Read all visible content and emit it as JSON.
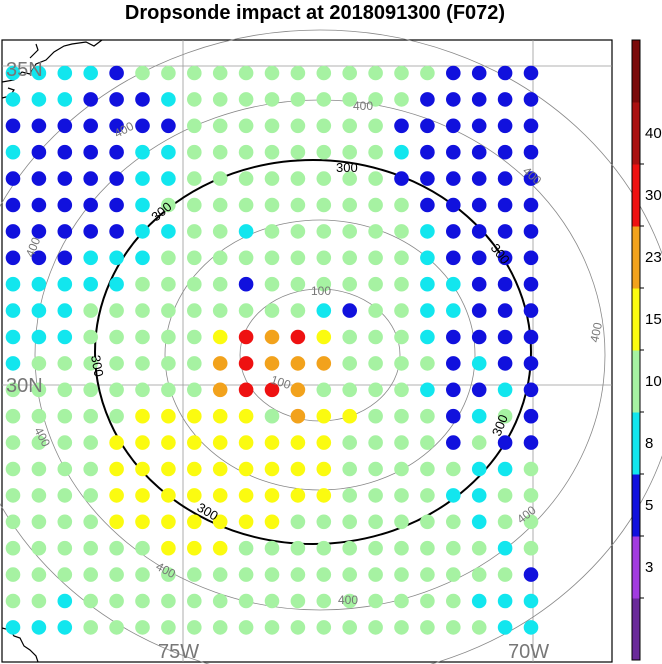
{
  "title": "Dropsonde impact at 2018091300 (F072)",
  "chart_data": {
    "type": "scatter",
    "title": "Dropsonde impact at 2018091300 (F072)",
    "map": {
      "lat_labels": [
        "35N",
        "30N"
      ],
      "lon_labels": [
        "75W",
        "70W"
      ],
      "range_rings": [
        {
          "label": "100",
          "values_shown": [
            "100",
            "100"
          ]
        },
        {
          "label": "300",
          "values_shown": [
            "300",
            "300",
            "300",
            "300",
            "300",
            "300"
          ]
        },
        {
          "label": "400",
          "values_shown": [
            "400",
            "400",
            "400",
            "400",
            "400",
            "400",
            "400"
          ]
        }
      ]
    },
    "colorbar": {
      "ticks": [
        "3",
        "5",
        "8",
        "10",
        "15",
        "23",
        "30",
        "40"
      ],
      "colors": [
        "#6a2a9a",
        "#a23be0",
        "#1111dd",
        "#12e6ee",
        "#a6f2a2",
        "#fbfb10",
        "#f2a21c",
        "#ee1111",
        "#aa1111",
        "#7a0a0a"
      ]
    },
    "grid": {
      "rows": 22,
      "cols": 21,
      "note_legend": [
        "deep blue",
        "cyan",
        "light green",
        "yellow",
        "orange",
        "red"
      ],
      "palette": {
        "B": "#1111dd",
        "C": "#12e6ee",
        "G": "#a6f2a2",
        "Y": "#fbfb10",
        "O": "#f2a21c",
        "R": "#ee1111"
      },
      "values": [
        "CCCCBGGGGGGGGGGGGBBBB",
        "CCCBBBCGGGGGGGGGBBBBB",
        "BBBBBBBGGGGGGGGBBBBBB",
        "CBBBBCCGGGGGGGGCBBBBB",
        "BBBBBCCGGGGGGGGBBBBBB",
        "BBBBBCGGGGGGGGGGBBBBB",
        "BBBBBCCGGCGGGGGGCBBBB",
        "BBBCCCGGGGGGGGGGCBBBB",
        "CCCCCGGGGBGGGGGGCCBBB",
        "CCCGGGGGGGGGCBGGCCBBB",
        "CCCGGGGGYRORYGGGCBBBB",
        "CGGGGGGGOROOOGGGGBCBB",
        "GGGGGGGGORROGGGGCBBCB",
        "GGGGGYYYYYGOYYGGGBCGB",
        "GGGGYYYYYYYYYGGGGBGBB",
        "GGGGYYYYYYYYYGGGGGCCG",
        "GGGGYYYYYYYYYGGGGCCGG",
        "GGGGYYYYYYYGGGGGGGCGG",
        "GGGGGGYYYGGGGGGGGGGCG",
        "GGGGGGGGGGGGGGGGGGGGB",
        "GGCGGGGGGGGGGGGGGGCCC",
        "CCCGGGGGGGGGGGGGGGGCC"
      ]
    }
  }
}
